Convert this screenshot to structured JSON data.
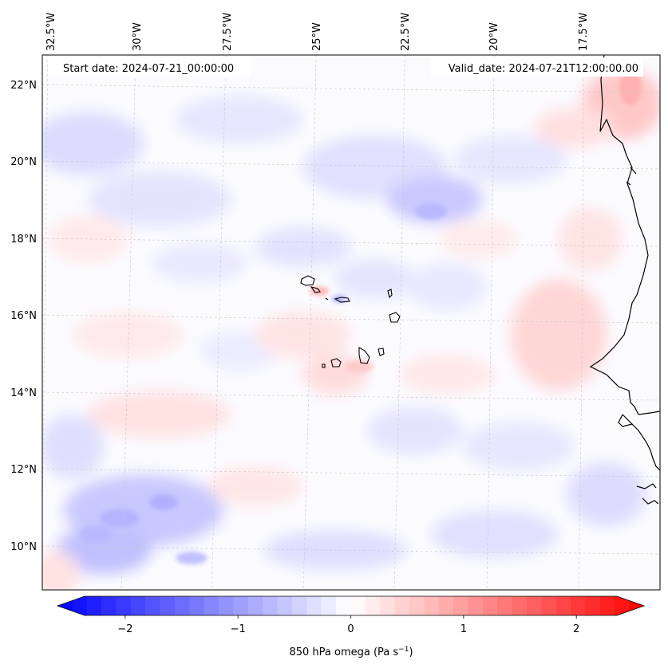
{
  "map": {
    "start_date_label": "Start date: 2024-07-21_00:00:00",
    "valid_date_label": "Valid_date: 2024-07-21T12:00:00.00",
    "lon_labels": [
      "32.5°W",
      "30°W",
      "27.5°W",
      "25°W",
      "22.5°W",
      "20°W",
      "17.5°W"
    ],
    "lat_labels": [
      "22°N",
      "20°N",
      "18°N",
      "16°N",
      "14°N",
      "12°N",
      "10°N"
    ]
  },
  "colorbar": {
    "tick_labels": [
      "−2",
      "−1",
      "0",
      "1",
      "2"
    ],
    "label_main": "850 hPa omega (Pa s",
    "label_sup": "−1",
    "label_close": ")",
    "vmin": -2.6,
    "vmax": 2.6,
    "cmap": "bwr",
    "color_low": "#0000ff",
    "color_mid": "#ffffff",
    "color_high": "#ff0000"
  }
}
